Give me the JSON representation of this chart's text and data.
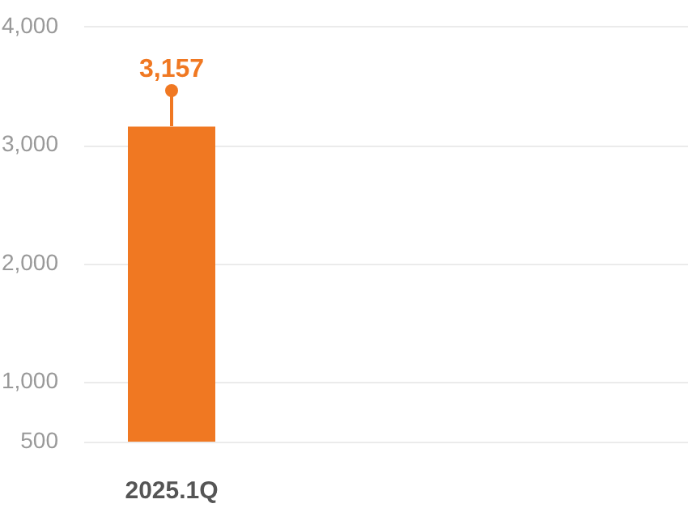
{
  "chart_data": {
    "type": "bar",
    "categories": [
      "2025.1Q"
    ],
    "values": [
      3157
    ],
    "value_labels": [
      "3,157"
    ],
    "color": "#f07822",
    "ylim": [
      500,
      4000
    ],
    "yticks": [
      500,
      {
        "value": 1000,
        "label": "1,000"
      },
      {
        "value": 2000,
        "label": "2,000"
      },
      {
        "value": 3000,
        "label": "3,000"
      },
      {
        "value": 4000,
        "label": "4,000"
      }
    ],
    "grid": "y"
  }
}
